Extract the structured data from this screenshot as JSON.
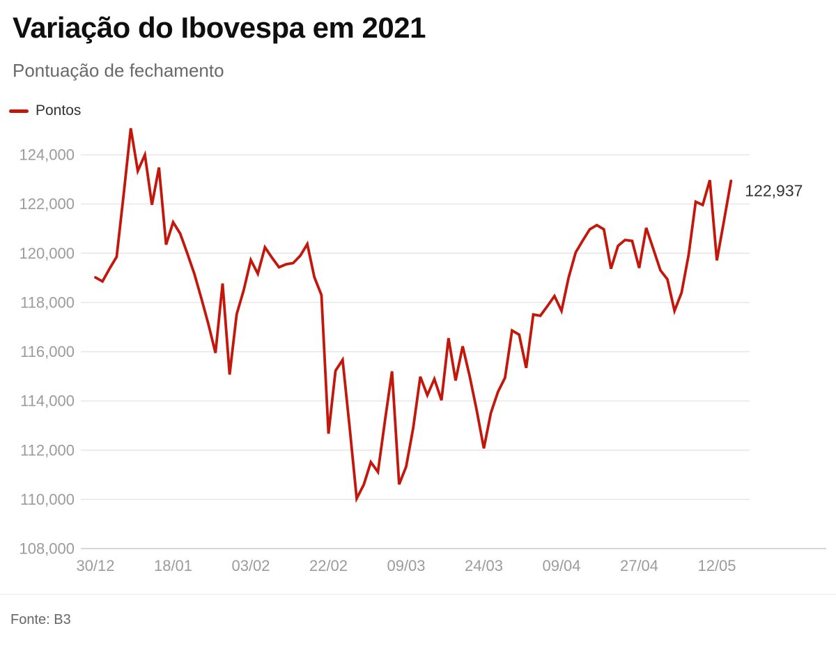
{
  "header": {
    "title": "Variação do Ibovespa em 2021",
    "subtitle": "Pontuação de fechamento"
  },
  "legend": {
    "label": "Pontos",
    "color": "#c4170c"
  },
  "footer": {
    "source": "Fonte: B3"
  },
  "chart_data": {
    "type": "line",
    "title": "Variação do Ibovespa em 2021",
    "subtitle": "Pontuação de fechamento",
    "source": "Fonte: B3",
    "grid": "horizontal-only",
    "legend_position": "top-left",
    "ylim": [
      108000,
      125500
    ],
    "y_ticks": [
      124000,
      122000,
      120000,
      118000,
      116000,
      114000,
      112000,
      110000,
      108000
    ],
    "x_ticks": [
      {
        "index": 0,
        "label": "30/12"
      },
      {
        "index": 11,
        "label": "18/01"
      },
      {
        "index": 22,
        "label": "03/02"
      },
      {
        "index": 33,
        "label": "22/02"
      },
      {
        "index": 44,
        "label": "09/03"
      },
      {
        "index": 55,
        "label": "24/03"
      },
      {
        "index": 66,
        "label": "09/04"
      },
      {
        "index": 77,
        "label": "27/04"
      },
      {
        "index": 88,
        "label": "12/05"
      }
    ],
    "x_labels": [
      "30/12",
      "04/01",
      "05/01",
      "06/01",
      "07/01",
      "08/01",
      "11/01",
      "12/01",
      "13/01",
      "14/01",
      "15/01",
      "18/01",
      "19/01",
      "20/01",
      "21/01",
      "22/01",
      "26/01",
      "27/01",
      "28/01",
      "29/01",
      "01/02",
      "02/02",
      "03/02",
      "04/02",
      "05/02",
      "08/02",
      "09/02",
      "10/02",
      "11/02",
      "12/02",
      "17/02",
      "18/02",
      "19/02",
      "22/02",
      "23/02",
      "24/02",
      "25/02",
      "26/02",
      "01/03",
      "02/03",
      "03/03",
      "04/03",
      "05/03",
      "08/03",
      "09/03",
      "10/03",
      "11/03",
      "12/03",
      "15/03",
      "16/03",
      "17/03",
      "18/03",
      "19/03",
      "22/03",
      "23/03",
      "24/03",
      "25/03",
      "26/03",
      "29/03",
      "30/03",
      "31/03",
      "01/04",
      "05/04",
      "06/04",
      "07/04",
      "08/04",
      "09/04",
      "12/04",
      "13/04",
      "14/04",
      "15/04",
      "16/04",
      "19/04",
      "20/04",
      "22/04",
      "23/04",
      "26/04",
      "27/04",
      "28/04",
      "29/04",
      "30/04",
      "03/05",
      "04/05",
      "05/05",
      "06/05",
      "07/05",
      "10/05",
      "11/05",
      "12/05",
      "13/05",
      "14/05"
    ],
    "series": [
      {
        "name": "Pontos",
        "color": "#c4170c",
        "values": [
          119017,
          118854,
          119376,
          119851,
          122386,
          125077,
          123344,
          123998,
          121967,
          123481,
          120350,
          121260,
          120800,
          120000,
          119170,
          118170,
          117110,
          115950,
          118770,
          115070,
          117518,
          118508,
          119724,
          119170,
          120242,
          119820,
          119430,
          119550,
          119600,
          119900,
          120371,
          119029,
          118300,
          112668,
          115227,
          115667,
          112919,
          110035,
          110600,
          111514,
          111114,
          113200,
          115202,
          110611,
          111331,
          112900,
          114984,
          114234,
          114886,
          114029,
          116549,
          114829,
          116222,
          115000,
          113600,
          112072,
          113510,
          114370,
          114940,
          116860,
          116690,
          115340,
          117510,
          117460,
          117850,
          118260,
          117660,
          119000,
          120030,
          120510,
          120970,
          121140,
          120970,
          119370,
          120300,
          120540,
          120500,
          119400,
          121030,
          120170,
          119310,
          118940,
          117660,
          118400,
          119940,
          122090,
          121960,
          122970,
          119710,
          121300,
          122937
        ]
      }
    ],
    "end_label": "122,937",
    "end_value": 122937
  }
}
